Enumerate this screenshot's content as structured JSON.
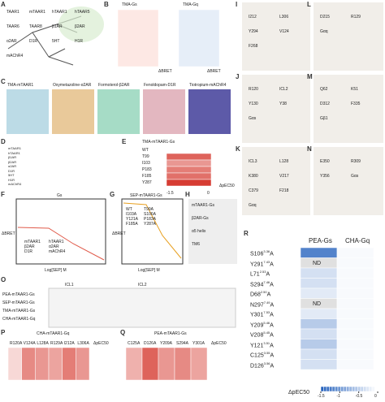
{
  "panels": {
    "A": {
      "letter": "A",
      "leaves": [
        "TAAR1",
        "mTAAR1",
        "hTAAR1",
        "hTAAR5",
        "TAAR6",
        "TAAR8",
        "β1AR",
        "β2AR",
        "α2AR",
        "D1R",
        "5HT",
        "H1R",
        "mAChR4"
      ]
    },
    "B": {
      "letter": "B",
      "titles": [
        "TMA-Gs",
        "TMA-Gq"
      ],
      "legend": [
        "ΔBRET",
        "ΔBRET"
      ]
    },
    "C": {
      "letter": "C",
      "titles": [
        "TMA-mTAAR1",
        "Oxymetazoline-α2AR",
        "Formoterol-β2AR",
        "Fenoldopam-D1R",
        "Tiotropium-mAChR4"
      ]
    },
    "D": {
      "letter": "D",
      "rows": [
        "mTAAR1",
        "hTAAR1",
        "β1AR",
        "β2AR",
        "α2AR",
        "D1R",
        "5HT",
        "H1R",
        "mAChR4"
      ]
    },
    "E": {
      "letter": "E",
      "title": "TMA-mTAAR1-Gs",
      "rows": [
        "WT",
        "T99",
        "I103",
        "P183",
        "F185",
        "Y287"
      ],
      "values": [
        0,
        -1.2,
        -0.8,
        -1.0,
        -1.1,
        -1.5
      ],
      "legend": "ΔpEC50",
      "ticks": [
        -1.5,
        0
      ]
    },
    "F": {
      "letter": "F",
      "title": "Gs",
      "ylabel": "ΔBRET",
      "xlabel": "Log[SEP] M",
      "legend": [
        "mTAAR1",
        "hTAAR1",
        "β2AR",
        "α2AR",
        "D1R",
        "mAChR4"
      ]
    },
    "G": {
      "letter": "G",
      "title": "SEP-mTAAR1-Gs",
      "ylabel": "ΔBRET",
      "xlabel": "Log[SEP] M",
      "legend": [
        "WT",
        "T99A",
        "I103A",
        "S106A",
        "Y121A",
        "P183A",
        "F185A",
        "Y287A"
      ]
    },
    "H": {
      "letter": "H",
      "texts": [
        "mTAAR1-Gs",
        "β2AR-Gs",
        "α5 helix",
        "TM6"
      ]
    },
    "I": {
      "letter": "I",
      "texts": [
        "I212",
        "L306",
        "Y294",
        "V124",
        "F268"
      ]
    },
    "J": {
      "letter": "J",
      "texts": [
        "R120",
        "ICL2",
        "Y130",
        "Y38",
        "Gαs"
      ]
    },
    "K": {
      "letter": "K",
      "texts": [
        "ICL3",
        "L128",
        "K380",
        "V217",
        "C379",
        "F218",
        "Gαq"
      ]
    },
    "L": {
      "letter": "L",
      "texts": [
        "D215",
        "R129",
        "Gαq"
      ]
    },
    "M": {
      "letter": "M",
      "texts": [
        "Q62",
        "K51",
        "D312",
        "F335",
        "Gβ1"
      ]
    },
    "N": {
      "letter": "N",
      "texts": [
        "E350",
        "R309",
        "Y356",
        "Gαs"
      ]
    },
    "O": {
      "letter": "O",
      "rows": [
        "PEA-mTAAR1-Gs",
        "SEP-mTAAR1-Gs",
        "TMA-mTAAR1-Gs",
        "CHA-mTAAR1-Gq"
      ],
      "labels": [
        "ICL1",
        "ICL2"
      ]
    },
    "P": {
      "letter": "P",
      "title": "CHA-mTAAR1-Gq",
      "cols": [
        "R120A",
        "V124A",
        "L128A",
        "R129A",
        "I212A",
        "L306A"
      ],
      "values": [
        -0.3,
        -0.9,
        -0.8,
        -0.7,
        -1.0,
        -0.8
      ],
      "legend": "ΔpEC50"
    },
    "Q": {
      "letter": "Q",
      "title": "PEA-mTAAR1-Gs",
      "cols": [
        "C125A",
        "D126A",
        "Y209A",
        "S294A",
        "Y301A"
      ],
      "values": [
        -0.6,
        -1.2,
        -0.8,
        -0.9,
        -0.7
      ],
      "legend": "ΔpEC50"
    },
    "R": {
      "letter": "R",
      "cols": [
        "PEA-Gs",
        "CHA-Gq"
      ],
      "rows": [
        {
          "res": "S106",
          "bw": "3.36",
          "mut": "A"
        },
        {
          "res": "Y291",
          "bw": "7.43",
          "mut": "A"
        },
        {
          "res": "L71",
          "bw": "2.53",
          "mut": "A"
        },
        {
          "res": "S294",
          "bw": "7.46",
          "mut": "A"
        },
        {
          "res": "D68",
          "bw": "2.50",
          "mut": "A"
        },
        {
          "res": "N297",
          "bw": "7.49",
          "mut": "A"
        },
        {
          "res": "Y301",
          "bw": "7.53",
          "mut": "A"
        },
        {
          "res": "Y209",
          "bw": "5.46",
          "mut": "A"
        },
        {
          "res": "V208",
          "bw": "5.45",
          "mut": "A"
        },
        {
          "res": "Y121",
          "bw": "3.51",
          "mut": "A"
        },
        {
          "res": "C125",
          "bw": "3.55",
          "mut": "A"
        },
        {
          "res": "D126",
          "bw": "3.56",
          "mut": "A"
        }
      ],
      "values": [
        [
          -1.2,
          null,
          -0.3,
          -0.3,
          -0.2,
          null,
          -0.2,
          -0.5,
          -0.3,
          -0.5,
          -0.3,
          -0.3
        ],
        [
          -0.05,
          -0.05,
          -0.05,
          -0.05,
          -0.05,
          -0.05,
          -0.05,
          -0.05,
          -0.05,
          -0.05,
          -0.05,
          -0.05
        ]
      ],
      "value_labels": [
        [
          null,
          "ND",
          null,
          null,
          null,
          "ND",
          null,
          null,
          null,
          null,
          null,
          null
        ],
        [
          null,
          null,
          null,
          null,
          null,
          null,
          null,
          null,
          null,
          null,
          null,
          null
        ]
      ],
      "legend": "ΔpEC50",
      "ticks": [
        -1.5,
        -1,
        -0.5,
        0
      ]
    }
  }
}
